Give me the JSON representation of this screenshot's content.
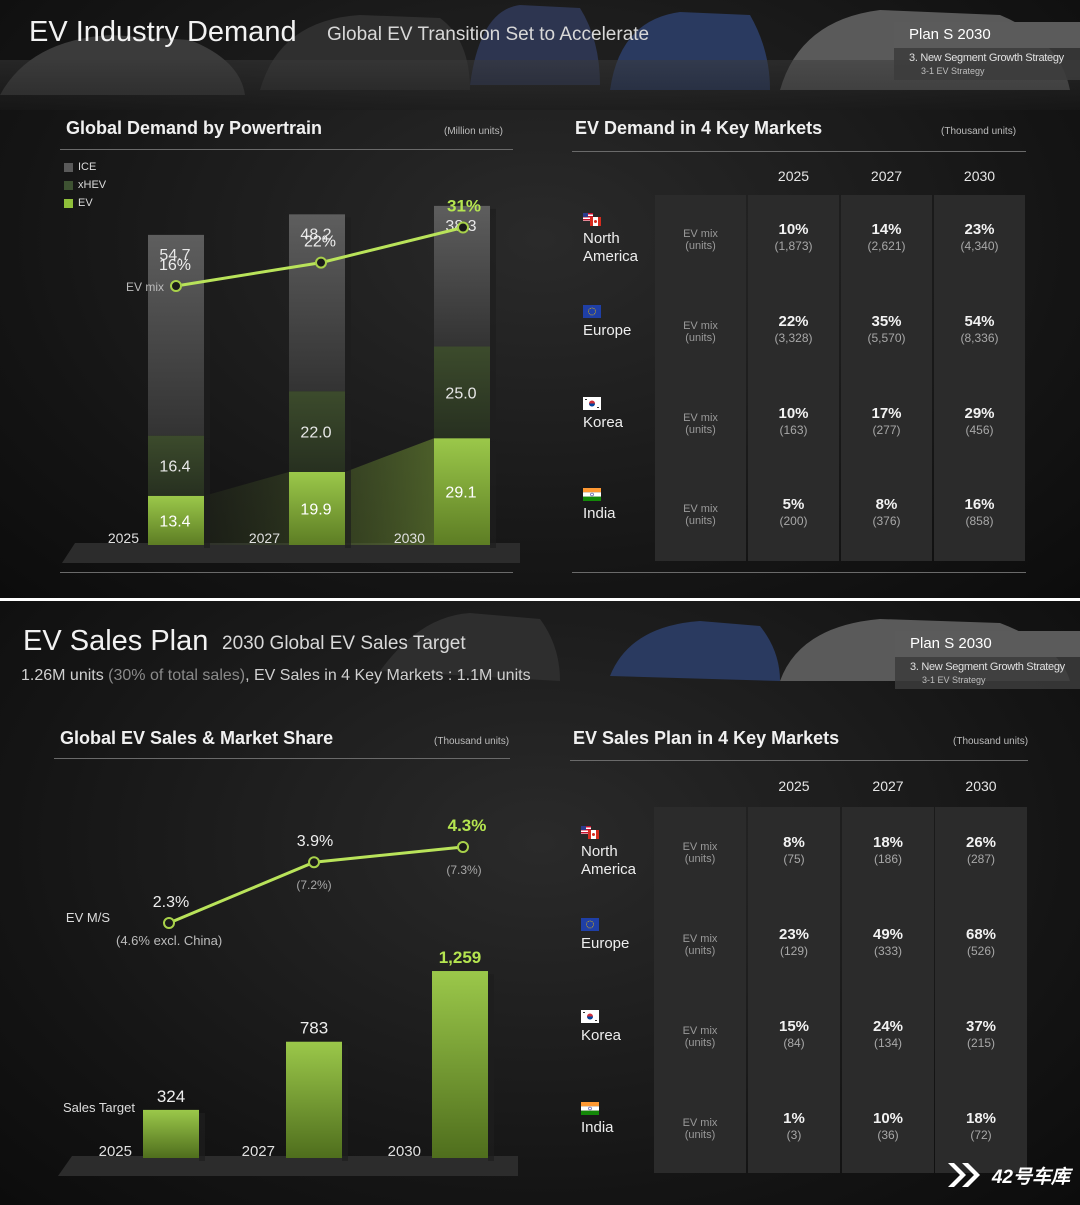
{
  "slide1": {
    "title": "EV Industry Demand",
    "subtitle": "Global EV Transition Set to Accelerate",
    "plan": {
      "title": "Plan S 2030",
      "line1": "3. New Segment Growth Strategy",
      "line2": "3-1 EV Strategy"
    },
    "left": {
      "title": "Global Demand by Powertrain",
      "unit": "(Million units)",
      "legend": [
        "ICE",
        "xHEV",
        "EV"
      ],
      "ev_mix_label": "EV mix"
    },
    "right": {
      "title": "EV Demand in 4 Key Markets",
      "unit": "(Thousand units)",
      "years": [
        "2025",
        "2027",
        "2030"
      ],
      "mix_label_1": "EV mix",
      "mix_label_2": "(units)",
      "markets": [
        {
          "name_1": "North",
          "name_2": "America",
          "flag": "us-canada",
          "cells": [
            {
              "pct": "10%",
              "units": "(1,873)"
            },
            {
              "pct": "14%",
              "units": "(2,621)"
            },
            {
              "pct": "23%",
              "units": "(4,340)"
            }
          ]
        },
        {
          "name_1": "Europe",
          "name_2": "",
          "flag": "eu",
          "cells": [
            {
              "pct": "22%",
              "units": "(3,328)"
            },
            {
              "pct": "35%",
              "units": "(5,570)"
            },
            {
              "pct": "54%",
              "units": "(8,336)"
            }
          ]
        },
        {
          "name_1": "Korea",
          "name_2": "",
          "flag": "korea",
          "cells": [
            {
              "pct": "10%",
              "units": "(163)"
            },
            {
              "pct": "17%",
              "units": "(277)"
            },
            {
              "pct": "29%",
              "units": "(456)"
            }
          ]
        },
        {
          "name_1": "India",
          "name_2": "",
          "flag": "india",
          "cells": [
            {
              "pct": "5%",
              "units": "(200)"
            },
            {
              "pct": "8%",
              "units": "(376)"
            },
            {
              "pct": "16%",
              "units": "(858)"
            }
          ]
        }
      ]
    }
  },
  "slide2": {
    "title": "EV Sales Plan",
    "subtitle": "2030 Global EV Sales Target",
    "sub_line_a": "1.26M units ",
    "sub_line_b": "(30% of total sales)",
    "sub_line_c": ", EV Sales in 4 Key Markets : 1.1M units",
    "plan": {
      "title": "Plan S 2030",
      "line1": "3. New Segment Growth Strategy",
      "line2": "3-1 EV Strategy"
    },
    "left": {
      "title": "Global EV Sales & Market Share",
      "unit": "(Thousand units)",
      "ms_label": "EV M/S",
      "ms_note_2025": "(4.6% excl. China)",
      "ms_note_2027": "(7.2%)",
      "ms_note_2030": "(7.3%)",
      "target_label": "Sales Target"
    },
    "right": {
      "title": "EV Sales Plan in 4 Key Markets",
      "unit": "(Thousand units)",
      "years": [
        "2025",
        "2027",
        "2030"
      ],
      "mix_label_1": "EV mix",
      "mix_label_2": "(units)",
      "markets": [
        {
          "name_1": "North",
          "name_2": "America",
          "flag": "us-canada",
          "cells": [
            {
              "pct": "8%",
              "units": "(75)"
            },
            {
              "pct": "18%",
              "units": "(186)"
            },
            {
              "pct": "26%",
              "units": "(287)"
            }
          ]
        },
        {
          "name_1": "Europe",
          "name_2": "",
          "flag": "eu",
          "cells": [
            {
              "pct": "23%",
              "units": "(129)"
            },
            {
              "pct": "49%",
              "units": "(333)"
            },
            {
              "pct": "68%",
              "units": "(526)"
            }
          ]
        },
        {
          "name_1": "Korea",
          "name_2": "",
          "flag": "korea",
          "cells": [
            {
              "pct": "15%",
              "units": "(84)"
            },
            {
              "pct": "24%",
              "units": "(134)"
            },
            {
              "pct": "37%",
              "units": "(215)"
            }
          ]
        },
        {
          "name_1": "India",
          "name_2": "",
          "flag": "india",
          "cells": [
            {
              "pct": "1%",
              "units": "(3)"
            },
            {
              "pct": "10%",
              "units": "(36)"
            },
            {
              "pct": "18%",
              "units": "(72)"
            }
          ]
        }
      ]
    }
  },
  "watermark": "42号车库",
  "colors": {
    "ev_green": "#9acd32",
    "highlight": "#b5e550",
    "ice": "#4a4a4a",
    "xhev": "#3a4a2a"
  },
  "chart_data": [
    {
      "type": "bar",
      "stacked": true,
      "title": "Global Demand by Powertrain",
      "unit": "(Million units)",
      "categories": [
        "2025",
        "2027",
        "2030"
      ],
      "series": [
        {
          "name": "EV",
          "values": [
            13.4,
            19.9,
            29.1
          ]
        },
        {
          "name": "xHEV",
          "values": [
            16.4,
            22.0,
            25.0
          ]
        },
        {
          "name": "ICE",
          "values": [
            54.7,
            48.2,
            38.3
          ]
        }
      ],
      "line": {
        "name": "EV mix",
        "labels": [
          "16%",
          "22%",
          "31%"
        ],
        "values": [
          16,
          22,
          31
        ]
      },
      "legend": "top-left"
    },
    {
      "type": "bar",
      "title": "Global EV Sales & Market Share",
      "unit": "(Thousand units)",
      "categories": [
        "2025",
        "2027",
        "2030"
      ],
      "series": [
        {
          "name": "Sales Target",
          "values": [
            324,
            783,
            1259
          ],
          "labels": [
            "324",
            "783",
            "1,259"
          ]
        }
      ],
      "line": {
        "name": "EV M/S",
        "labels": [
          "2.3%",
          "3.9%",
          "4.3%"
        ],
        "values": [
          2.3,
          3.9,
          4.3
        ]
      }
    }
  ]
}
